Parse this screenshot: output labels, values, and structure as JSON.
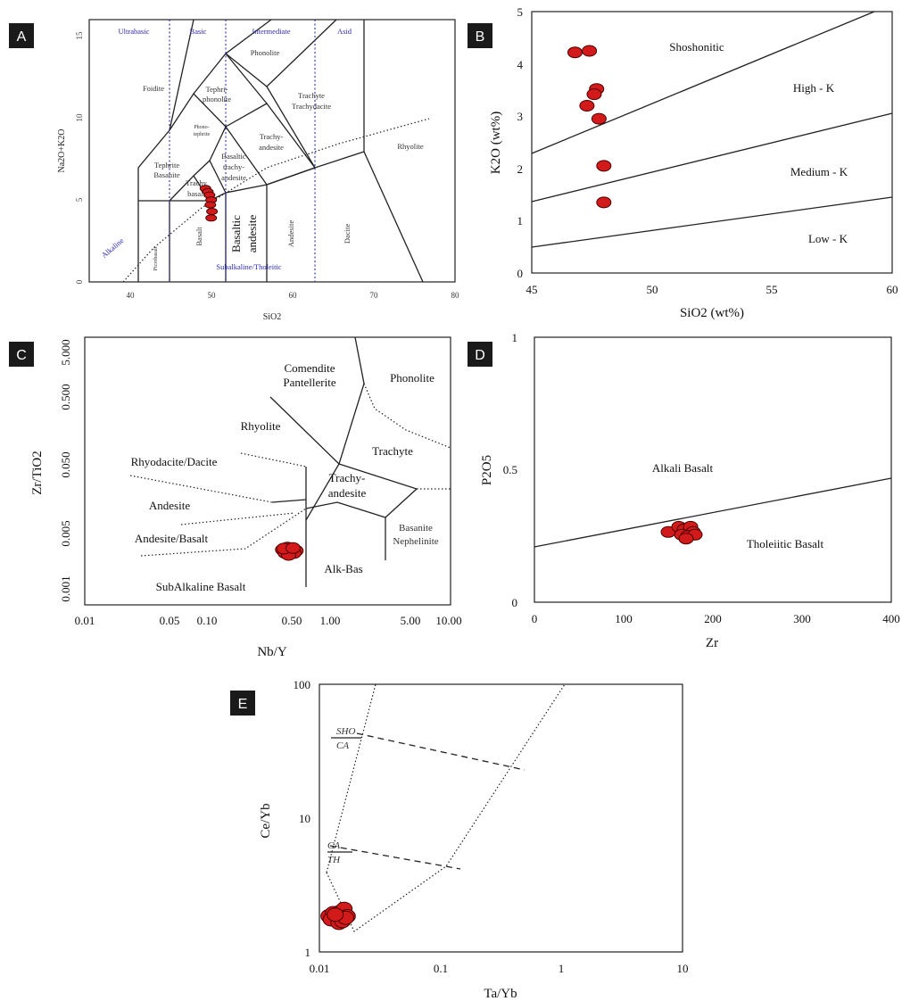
{
  "chart_data": [
    {
      "id": "A",
      "type": "scatter",
      "panel_label": "A",
      "xlabel": "SiO2",
      "ylabel": "Na2O+K2O",
      "xlim": [
        35,
        80
      ],
      "ylim": [
        0,
        16
      ],
      "xticks": [
        "40",
        "50",
        "60",
        "70",
        "80"
      ],
      "yticks": [
        "0",
        "5",
        "10",
        "15"
      ],
      "header_labels": [
        "Ultrabasic",
        "Basic",
        "Intermediate",
        "Asid"
      ],
      "field_labels": [
        "Phonolite",
        "Foidite",
        "Tephri-",
        "phonolite",
        "Trachyte",
        "Trachydacite",
        "Phono-",
        "tephrite",
        "Trachy-",
        "andesite",
        "Rhyolite",
        "Tephrite",
        "Basanite",
        "Basaltic",
        "trachy-",
        "andesite",
        "Trachy",
        "basalt",
        "Picrobasalt",
        "Basalt",
        "Basaltic",
        "andesite",
        "Andesite",
        "Dacite",
        "Alkaline",
        "Subalkaline/Tholeitic"
      ],
      "series": [
        {
          "x": [
            49.3,
            49.6,
            49.8,
            50.0,
            49.9,
            50.1,
            50.0
          ],
          "y": [
            5.7,
            5.5,
            5.3,
            5.0,
            4.7,
            4.3,
            3.9
          ]
        }
      ]
    },
    {
      "id": "B",
      "type": "scatter",
      "panel_label": "B",
      "xlabel": "SiO2 (wt%)",
      "ylabel": "K2O (wt%)",
      "xlim": [
        45,
        60
      ],
      "ylim": [
        0,
        5
      ],
      "xticks": [
        "45",
        "50",
        "55",
        "60"
      ],
      "yticks": [
        "0",
        "1",
        "2",
        "3",
        "4",
        "5"
      ],
      "field_labels": [
        "Shoshonitic",
        "High - K",
        "Medium - K",
        "Low - K"
      ],
      "series": [
        {
          "x": [
            46.8,
            47.4,
            47.7,
            47.6,
            47.3,
            47.8,
            48.0,
            48.0
          ],
          "y": [
            4.22,
            4.25,
            3.52,
            3.42,
            3.2,
            2.95,
            2.05,
            1.35
          ]
        }
      ]
    },
    {
      "id": "C",
      "type": "scatter",
      "panel_label": "C",
      "xlabel": "Nb/Y",
      "ylabel": "Zr/TiO2",
      "x_scale": "log",
      "y_scale": "log",
      "xlim": [
        0.01,
        10
      ],
      "ylim": [
        0.001,
        5
      ],
      "xticks": [
        "0.01",
        "0.05",
        "0.10",
        "0.50",
        "1.00",
        "5.00",
        "10.00"
      ],
      "yticks": [
        "0.001",
        "0.005",
        "0.050",
        "0.500",
        "5.000"
      ],
      "field_labels": [
        "Comendite",
        "Pantellerite",
        "Phonolite",
        "Rhyolite",
        "Trachyte",
        "Rhyodacite/Dacite",
        "Trachy-",
        "andesite",
        "Andesite",
        "Basanite",
        "Nephelinite",
        "Andesite/Basalt",
        "Alk-Bas",
        "SubAlkaline Basalt"
      ],
      "series": [
        {
          "x": [
            0.42,
            0.46,
            0.5,
            0.54,
            0.44,
            0.48,
            0.52,
            0.47,
            0.43,
            0.51
          ],
          "y": [
            0.0058,
            0.0062,
            0.006,
            0.0056,
            0.0052,
            0.0054,
            0.0052,
            0.0049,
            0.006,
            0.0061
          ]
        }
      ]
    },
    {
      "id": "D",
      "type": "scatter",
      "panel_label": "D",
      "xlabel": "Zr",
      "ylabel": "P2O5",
      "xlim": [
        0,
        400
      ],
      "ylim": [
        0,
        1
      ],
      "xticks": [
        "0",
        "100",
        "200",
        "300",
        "400"
      ],
      "yticks": [
        "0",
        "0.5",
        "1"
      ],
      "field_labels": [
        "Alkali Basalt",
        "Tholeiitic Basalt"
      ],
      "series": [
        {
          "x": [
            150,
            162,
            168,
            175,
            178,
            165,
            172,
            180,
            170
          ],
          "y": [
            0.265,
            0.285,
            0.275,
            0.285,
            0.265,
            0.255,
            0.25,
            0.255,
            0.24
          ]
        }
      ]
    },
    {
      "id": "E",
      "type": "scatter",
      "panel_label": "E",
      "xlabel": "Ta/Yb",
      "ylabel": "Ce/Yb",
      "x_scale": "log",
      "y_scale": "log",
      "xlim": [
        0.01,
        10
      ],
      "ylim": [
        1,
        100
      ],
      "xticks": [
        "0.01",
        "0.1",
        "1",
        "10"
      ],
      "yticks": [
        "1",
        "10",
        "100"
      ],
      "field_labels": [
        "SHO",
        "CA",
        "CA",
        "TH"
      ],
      "series": [
        {
          "x": [
            0.012,
            0.013,
            0.014,
            0.015,
            0.016,
            0.017,
            0.0125,
            0.0145,
            0.0155,
            0.0165,
            0.0135
          ],
          "y": [
            1.85,
            1.95,
            1.8,
            2.0,
            2.1,
            1.85,
            1.75,
            1.65,
            1.7,
            1.8,
            1.9
          ]
        }
      ]
    }
  ]
}
